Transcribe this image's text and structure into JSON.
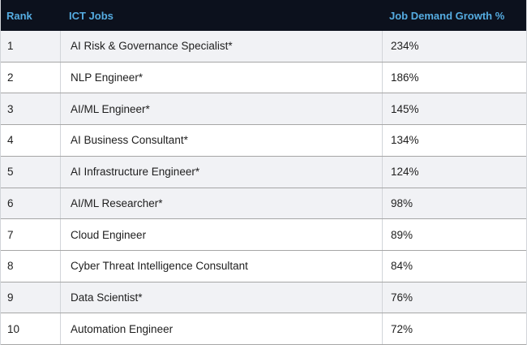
{
  "colors": {
    "header_bg": "#0c111d",
    "header_text": "#55ace1",
    "row_bg": "#ffffff",
    "row_shaded_bg": "#f1f2f5",
    "divider": "#a6a6a6",
    "column_divider": "#d2d5d9",
    "body_text": "#1e1e1e"
  },
  "chart_data": {
    "type": "table",
    "title": "",
    "columns": [
      "Rank",
      "ICT Jobs",
      "Job Demand Growth %"
    ],
    "growth_values": [
      234,
      186,
      145,
      134,
      124,
      98,
      89,
      84,
      76,
      72
    ],
    "rows": [
      {
        "rank": "1",
        "job": "AI Risk & Governance Specialist*",
        "growth": "234%",
        "growth_value": 234,
        "shaded": true
      },
      {
        "rank": "2",
        "job": "NLP Engineer*",
        "growth": "186%",
        "growth_value": 186,
        "shaded": false
      },
      {
        "rank": "3",
        "job": "AI/ML Engineer*",
        "growth": "145%",
        "growth_value": 145,
        "shaded": true
      },
      {
        "rank": "4",
        "job": "AI Business Consultant*",
        "growth": "134%",
        "growth_value": 134,
        "shaded": false
      },
      {
        "rank": "5",
        "job": "AI Infrastructure Engineer*",
        "growth": "124%",
        "growth_value": 124,
        "shaded": true
      },
      {
        "rank": "6",
        "job": "AI/ML Researcher*",
        "growth": "98%",
        "growth_value": 98,
        "shaded": true
      },
      {
        "rank": "7",
        "job": "Cloud Engineer",
        "growth": "89%",
        "growth_value": 89,
        "shaded": false
      },
      {
        "rank": "8",
        "job": "Cyber Threat Intelligence Consultant",
        "growth": "84%",
        "growth_value": 84,
        "shaded": false
      },
      {
        "rank": "9",
        "job": "Data Scientist*",
        "growth": "76%",
        "growth_value": 76,
        "shaded": true
      },
      {
        "rank": "10",
        "job": "Automation Engineer",
        "growth": "72%",
        "growth_value": 72,
        "shaded": false
      }
    ]
  }
}
